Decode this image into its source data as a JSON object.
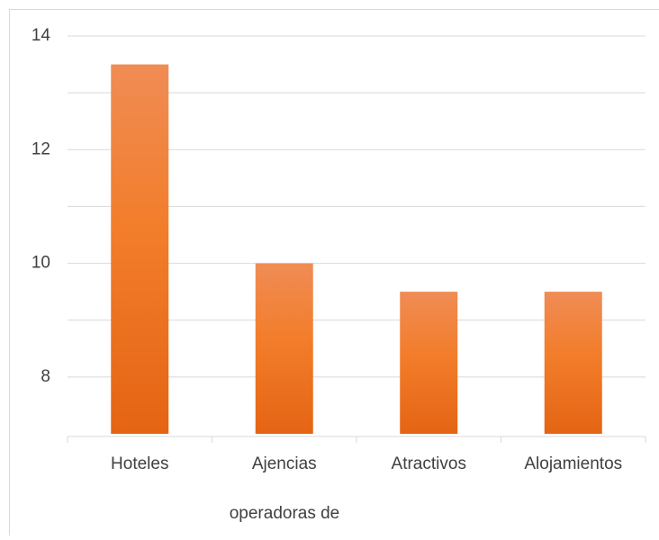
{
  "chart_data": {
    "type": "bar",
    "categories": [
      "Hoteles",
      "Ajencias",
      "Atractivos",
      "Alojamientos"
    ],
    "values": [
      13.5,
      10,
      9.5,
      9.5
    ],
    "color": "#f07a2a",
    "x_label": "operadoras de",
    "ylim": [
      7,
      14
    ],
    "yticks": [
      8,
      10,
      12,
      14
    ],
    "minor_yticks": [
      9,
      11,
      13
    ],
    "grid": true
  }
}
